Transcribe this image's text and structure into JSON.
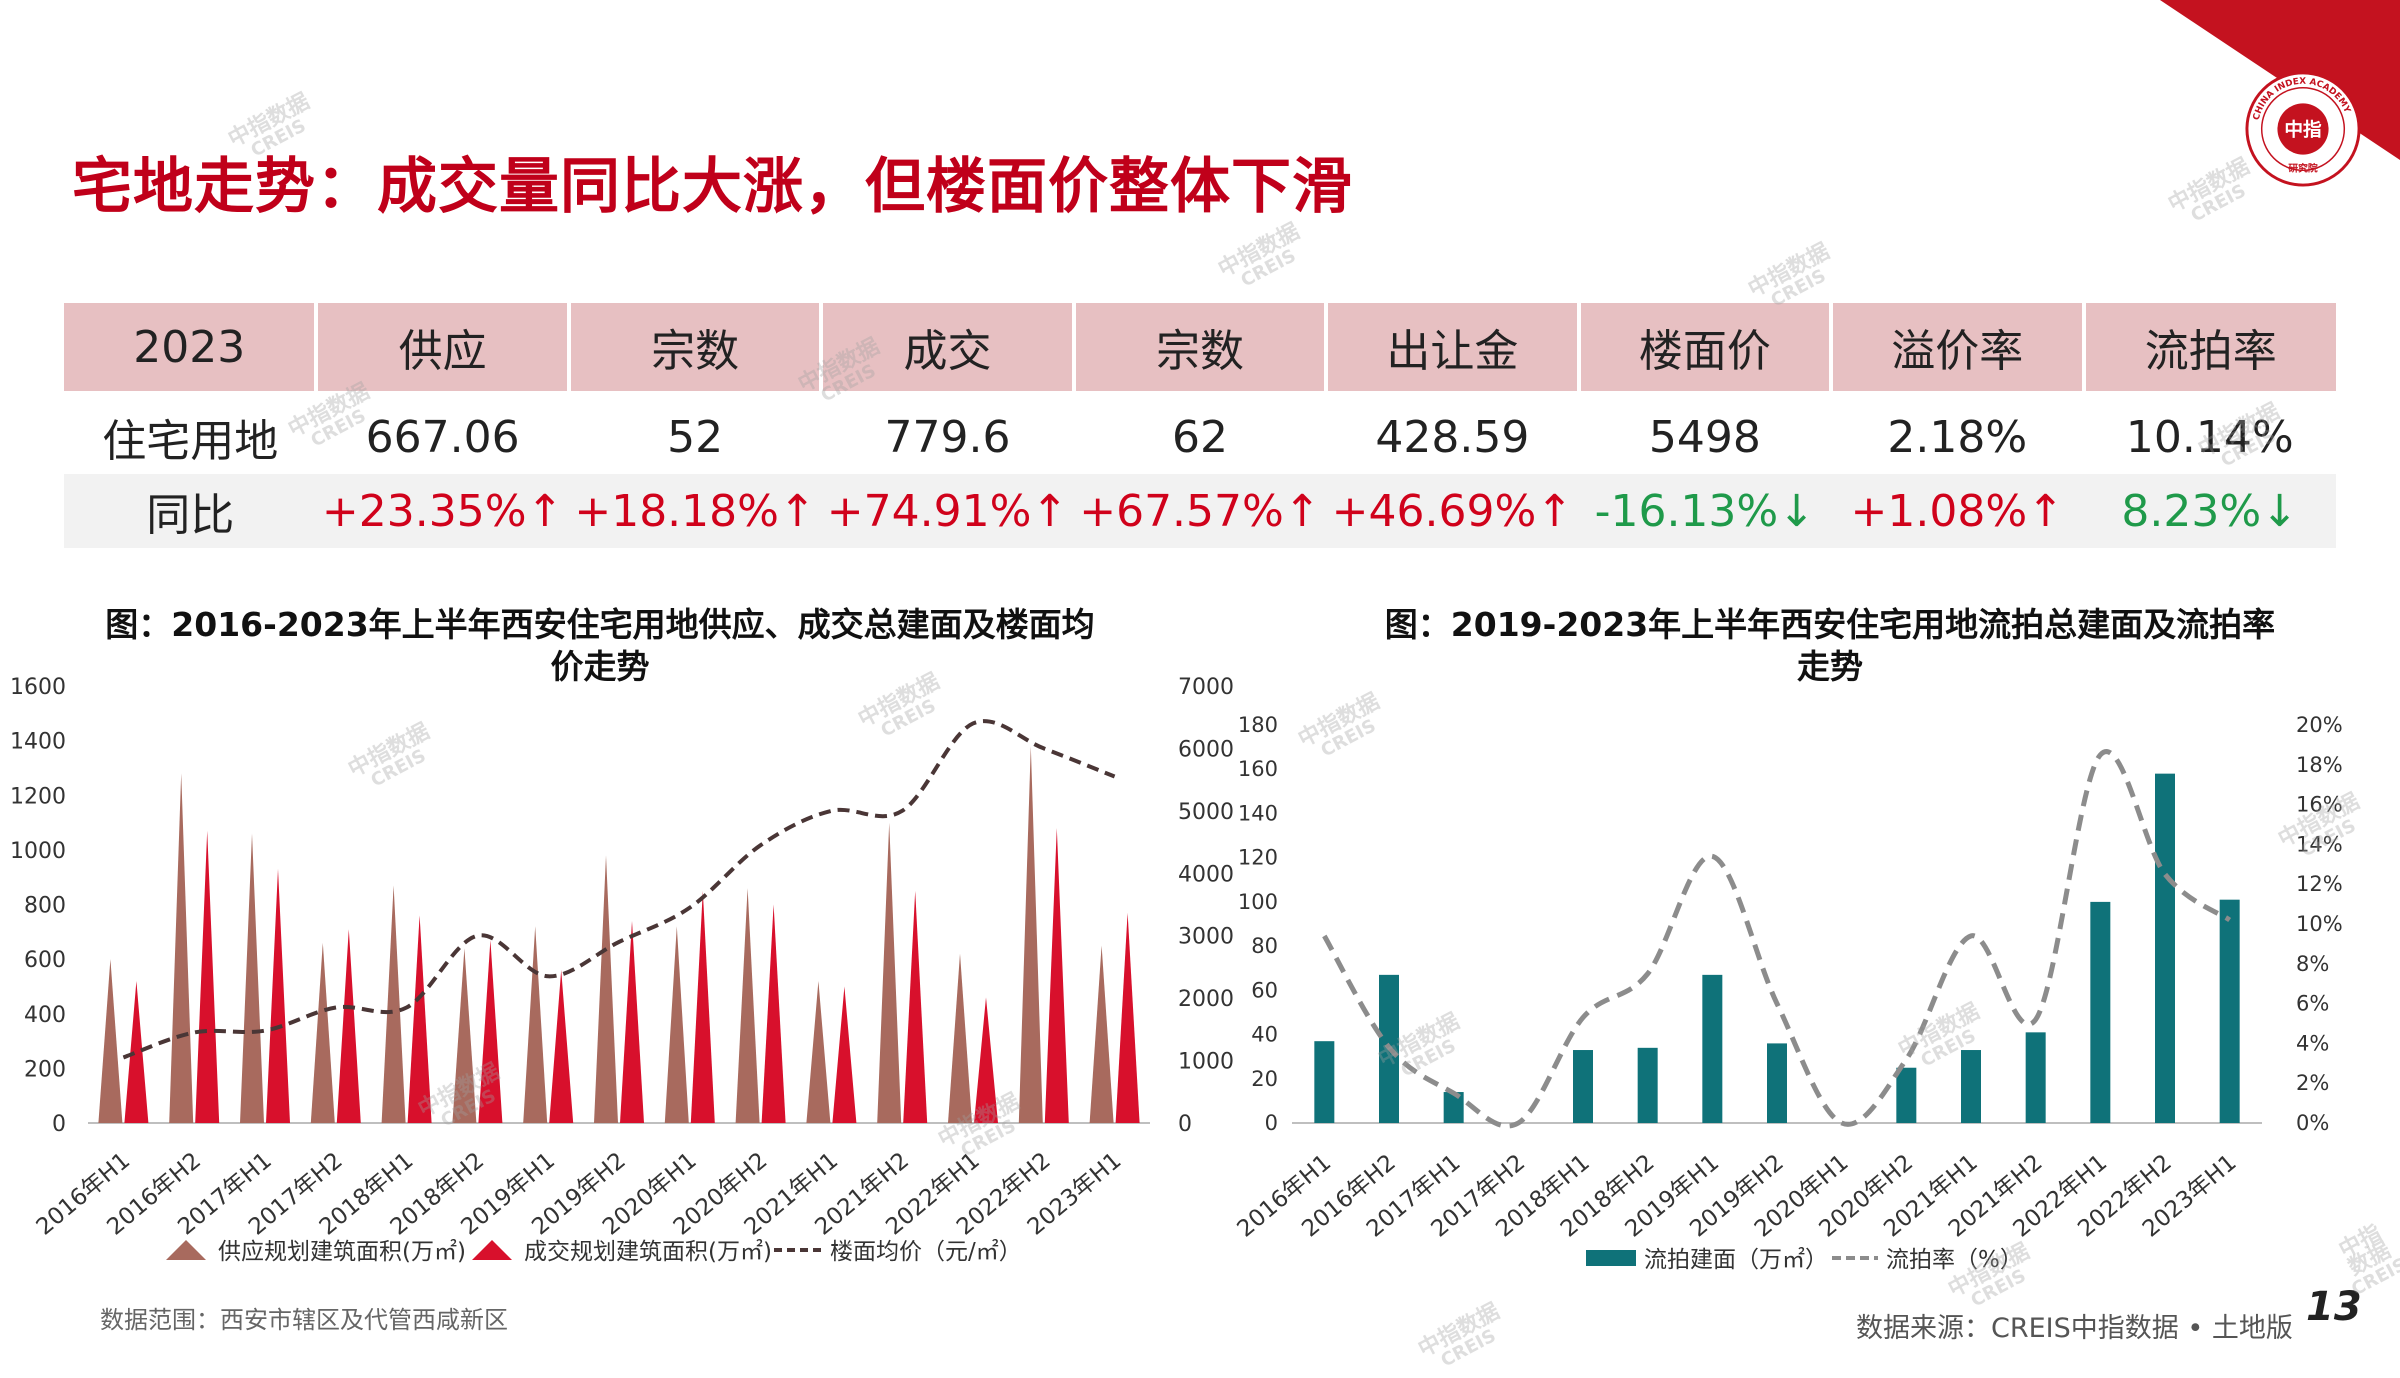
{
  "title": "宅地走势：成交量同比大涨，但楼面价整体下滑",
  "logo": {
    "text_top": "CHINA INDEX ACADEMY",
    "center": "中指",
    "bottom": "研究院"
  },
  "table": {
    "headers": [
      "2023",
      "供应",
      "宗数",
      "成交",
      "宗数",
      "出让金",
      "楼面价",
      "溢价率",
      "流拍率"
    ],
    "row1": [
      "住宅用地",
      "667.06",
      "52",
      "779.6",
      "62",
      "428.59",
      "5498",
      "2.18%",
      "10.14%"
    ],
    "row2": [
      {
        "text": "同比",
        "dir": ""
      },
      {
        "text": "+23.35%↑",
        "dir": "up"
      },
      {
        "text": "+18.18%↑",
        "dir": "up"
      },
      {
        "text": "+74.91%↑",
        "dir": "up"
      },
      {
        "text": "+67.57%↑",
        "dir": "up"
      },
      {
        "text": "+46.69%↑",
        "dir": "up"
      },
      {
        "text": "-16.13%↓",
        "dir": "down"
      },
      {
        "text": "+1.08%↑",
        "dir": "up"
      },
      {
        "text": "8.23%↓",
        "dir": "down"
      }
    ]
  },
  "chart_left_title": "图：2016-2023年上半年西安住宅用地供应、成交总建面及楼面均价走势",
  "chart_right_title": "图：2019-2023年上半年西安住宅用地流拍总建面及流拍率走势",
  "chart_data": [
    {
      "type": "bar",
      "subtype": "triangle-columns-with-line",
      "categories": [
        "2016年H1",
        "2016年H2",
        "2017年H1",
        "2017年H2",
        "2018年H1",
        "2018年H2",
        "2019年H1",
        "2019年H2",
        "2020年H1",
        "2020年H2",
        "2021年H1",
        "2021年H2",
        "2022年H1",
        "2022年H2",
        "2023年H1"
      ],
      "series": [
        {
          "name": "供应规划建筑面积(万㎡)",
          "axis": "left",
          "color": "#a86a5e",
          "values": [
            600,
            1280,
            1060,
            660,
            870,
            640,
            720,
            980,
            720,
            860,
            520,
            1100,
            620,
            1380,
            650
          ]
        },
        {
          "name": "成交规划建筑面积(万㎡)",
          "axis": "left",
          "color": "#d8102c",
          "values": [
            520,
            1070,
            930,
            710,
            760,
            670,
            560,
            740,
            850,
            800,
            500,
            850,
            460,
            1080,
            770
          ]
        },
        {
          "name": "楼面均价（元/㎡）",
          "axis": "right",
          "color": "#4a3636",
          "style": "dashed",
          "values": [
            1050,
            1450,
            1480,
            1850,
            1850,
            3000,
            2350,
            2900,
            3450,
            4450,
            5000,
            5000,
            6400,
            6000,
            5550
          ]
        }
      ],
      "y_left": {
        "min": 0,
        "max": 1600,
        "ticks": [
          0,
          200,
          400,
          600,
          800,
          1000,
          1200,
          1400,
          1600
        ]
      },
      "y_right": {
        "min": 0,
        "max": 7000,
        "ticks": [
          0,
          1000,
          2000,
          3000,
          4000,
          5000,
          6000,
          7000
        ]
      },
      "legend_position": "bottom"
    },
    {
      "type": "bar",
      "subtype": "columns-with-line",
      "categories": [
        "2016年H1",
        "2016年H2",
        "2017年H1",
        "2017年H2",
        "2018年H1",
        "2018年H2",
        "2019年H1",
        "2019年H2",
        "2020年H1",
        "2020年H2",
        "2021年H1",
        "2021年H2",
        "2022年H1",
        "2022年H2",
        "2023年H1"
      ],
      "series": [
        {
          "name": "流拍建面（万㎡）",
          "axis": "left",
          "color": "#0f7279",
          "values": [
            37,
            67,
            14,
            0,
            33,
            34,
            67,
            36,
            0,
            25,
            33,
            41,
            100,
            158,
            101
          ]
        },
        {
          "name": "流拍率（%）",
          "axis": "right",
          "color": "#8c8c8c",
          "style": "dashed",
          "values": [
            9.4,
            3.8,
            1.5,
            0.0,
            5.3,
            7.5,
            13.4,
            6.0,
            0.0,
            3.2,
            9.4,
            5.2,
            18.5,
            12.5,
            10.2
          ]
        }
      ],
      "y_left": {
        "min": 0,
        "max": 180,
        "ticks": [
          0,
          20,
          40,
          60,
          80,
          100,
          120,
          140,
          160,
          180
        ]
      },
      "y_right": {
        "min": 0,
        "max": 20,
        "ticks": [
          "0%",
          "2%",
          "4%",
          "6%",
          "8%",
          "10%",
          "12%",
          "14%",
          "16%",
          "18%",
          "20%"
        ]
      },
      "legend_position": "bottom"
    }
  ],
  "footer": {
    "note": "数据范围：西安市辖区及代管西咸新区",
    "source": "数据来源：CREIS中指数据 • 土地版",
    "page": "13"
  },
  "watermark": {
    "line1": "中指数据",
    "line2": "CREIS"
  }
}
